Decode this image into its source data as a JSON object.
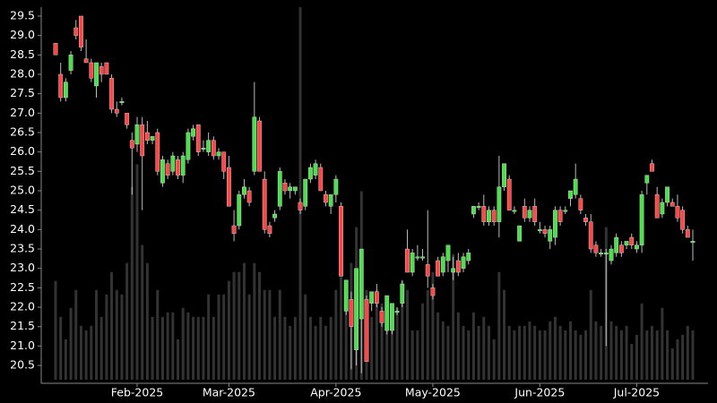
{
  "chart_data": {
    "type": "candlestick",
    "categories": [
      null,
      null,
      null,
      null,
      null,
      null,
      null,
      null,
      null,
      null,
      null,
      null,
      null,
      null,
      null,
      null,
      "Feb-2025",
      null,
      null,
      null,
      null,
      null,
      null,
      null,
      null,
      null,
      null,
      null,
      null,
      null,
      null,
      null,
      null,
      null,
      "Mar-2025",
      null,
      null,
      null,
      null,
      null,
      null,
      null,
      null,
      null,
      null,
      null,
      null,
      null,
      null,
      null,
      null,
      null,
      null,
      null,
      null,
      "Apr-2025",
      null,
      null,
      null,
      null,
      null,
      null,
      null,
      null,
      null,
      null,
      null,
      null,
      null,
      null,
      null,
      null,
      null,
      null,
      "May-2025",
      null,
      null,
      null,
      null,
      null,
      null,
      null,
      null,
      null,
      null,
      null,
      null,
      null,
      null,
      null,
      null,
      null,
      null,
      null,
      null,
      "Jun-2025",
      null,
      null,
      null,
      null,
      null,
      null,
      null,
      null,
      null,
      null,
      null,
      null,
      null,
      null,
      null,
      null,
      null,
      null,
      "Jul-2025",
      null,
      null,
      null,
      null,
      null,
      null,
      null,
      null,
      null,
      null,
      null
    ],
    "open": [
      28.8,
      28.0,
      27.4,
      28.1,
      29.2,
      29.5,
      28.4,
      28.3,
      27.7,
      28.2,
      28.3,
      27.9,
      27.1,
      27.3,
      27.0,
      26.3,
      26.2,
      26.7,
      26.5,
      26.3,
      26.5,
      25.2,
      25.7,
      25.5,
      25.8,
      25.4,
      25.8,
      26.4,
      26.7,
      26.1,
      26.0,
      26.3,
      25.9,
      26.0,
      25.6,
      24.1,
      24.1,
      24.9,
      25.0,
      25.5,
      26.8,
      25.3,
      24.1,
      24.3,
      24.6,
      25.2,
      25.0,
      25.0,
      24.7,
      24.6,
      25.3,
      25.4,
      25.6,
      24.9,
      24.6,
      24.9,
      24.6,
      21.9,
      22.2,
      20.9,
      21.7,
      22.2,
      22.1,
      22.4,
      21.9,
      21.4,
      21.4,
      21.9,
      22.1,
      23.5,
      22.9,
      23.3,
      23.3,
      23.1,
      22.5,
      23.2,
      22.9,
      23.2,
      22.9,
      23.2,
      23.0,
      23.2,
      24.4,
      24.6,
      24.6,
      24.2,
      24.5,
      24.2,
      25.1,
      25.3,
      24.5,
      23.7,
      24.6,
      24.3,
      24.6,
      24.0,
      24.0,
      23.7,
      23.8,
      24.5,
      24.5,
      24.8,
      24.9,
      24.8,
      24.3,
      24.2,
      23.6,
      23.4,
      23.4,
      23.2,
      23.4,
      23.6,
      23.6,
      23.8,
      23.5,
      23.6,
      25.2,
      25.7,
      24.9,
      24.4,
      24.7,
      24.7,
      24.6,
      24.5,
      24.0,
      23.7
    ],
    "high": [
      28.8,
      28.3,
      27.9,
      28.6,
      29.4,
      29.5,
      28.9,
      28.4,
      28.3,
      28.3,
      28.3,
      28.0,
      27.3,
      27.4,
      27.0,
      26.5,
      26.9,
      26.9,
      26.8,
      26.4,
      26.6,
      25.9,
      25.8,
      26.0,
      25.9,
      26.0,
      26.6,
      26.7,
      26.7,
      26.3,
      26.5,
      26.4,
      26.1,
      26.0,
      25.9,
      24.5,
      25.0,
      25.3,
      25.1,
      27.8,
      26.9,
      25.5,
      24.2,
      24.5,
      25.6,
      25.3,
      25.2,
      25.1,
      24.8,
      25.3,
      25.7,
      25.8,
      25.7,
      25.0,
      24.9,
      25.4,
      24.7,
      22.7,
      22.4,
      23.0,
      23.5,
      22.3,
      22.4,
      22.6,
      22.0,
      22.3,
      22.1,
      22.0,
      22.7,
      24.0,
      23.5,
      23.6,
      23.5,
      24.5,
      22.6,
      23.3,
      23.4,
      23.6,
      23.3,
      23.4,
      23.4,
      23.5,
      24.6,
      24.7,
      24.9,
      24.6,
      24.6,
      25.9,
      25.7,
      25.4,
      24.6,
      24.1,
      24.8,
      24.6,
      24.8,
      24.2,
      24.1,
      24.1,
      24.6,
      24.6,
      24.6,
      25.0,
      25.7,
      24.9,
      24.4,
      24.4,
      23.7,
      23.5,
      23.5,
      23.6,
      23.9,
      23.7,
      23.7,
      23.9,
      23.7,
      25.0,
      25.4,
      25.8,
      25.1,
      24.8,
      25.1,
      24.8,
      24.9,
      24.6,
      24.1,
      24.0
    ],
    "low": [
      28.5,
      27.3,
      27.3,
      28.0,
      28.9,
      28.6,
      28.3,
      27.8,
      27.4,
      27.8,
      28.0,
      27.0,
      26.9,
      27.2,
      26.6,
      24.9,
      26.0,
      24.5,
      26.2,
      26.2,
      25.4,
      25.1,
      25.3,
      25.4,
      25.3,
      25.2,
      25.7,
      26.3,
      25.9,
      26.0,
      25.9,
      25.8,
      25.8,
      25.3,
      24.6,
      23.7,
      24.0,
      24.8,
      24.6,
      25.4,
      25.5,
      23.9,
      23.8,
      24.2,
      24.5,
      24.9,
      24.8,
      24.9,
      24.4,
      24.5,
      25.2,
      25.3,
      25.0,
      24.6,
      24.4,
      24.7,
      22.8,
      21.8,
      20.4,
      20.5,
      20.3,
      20.6,
      21.9,
      22.0,
      21.5,
      21.3,
      21.3,
      21.8,
      22.0,
      22.9,
      22.8,
      23.2,
      23.2,
      22.5,
      22.2,
      22.8,
      22.8,
      22.9,
      22.7,
      22.8,
      22.9,
      23.1,
      24.3,
      24.5,
      24.1,
      24.1,
      24.1,
      23.8,
      25.0,
      24.5,
      24.4,
      23.7,
      24.2,
      24.2,
      24.1,
      23.9,
      23.8,
      23.5,
      23.6,
      24.1,
      24.4,
      24.6,
      24.8,
      24.4,
      24.1,
      23.4,
      23.3,
      23.3,
      21.0,
      23.1,
      23.3,
      23.3,
      23.5,
      23.5,
      23.4,
      23.4,
      24.9,
      25.5,
      24.3,
      24.3,
      24.6,
      24.6,
      24.2,
      23.9,
      23.8,
      23.2
    ],
    "close": [
      28.5,
      27.4,
      27.8,
      28.5,
      29.0,
      28.7,
      28.3,
      27.9,
      28.3,
      28.0,
      28.0,
      27.1,
      27.0,
      27.3,
      26.7,
      26.1,
      26.7,
      25.9,
      26.3,
      26.4,
      25.5,
      25.8,
      25.4,
      25.9,
      25.4,
      25.9,
      26.5,
      26.6,
      26.0,
      26.1,
      26.3,
      25.9,
      26.0,
      25.5,
      24.6,
      23.9,
      24.9,
      25.1,
      24.7,
      26.9,
      25.5,
      24.0,
      23.9,
      24.4,
      25.5,
      25.0,
      25.1,
      25.1,
      24.5,
      25.3,
      25.6,
      25.7,
      25.0,
      24.7,
      24.9,
      25.3,
      22.8,
      22.7,
      21.5,
      23.0,
      23.5,
      20.6,
      22.4,
      22.1,
      21.6,
      22.3,
      22.1,
      21.9,
      22.6,
      22.9,
      23.4,
      23.3,
      23.3,
      22.8,
      22.3,
      22.8,
      23.3,
      23.6,
      23.0,
      22.9,
      23.3,
      23.4,
      24.6,
      24.6,
      24.2,
      24.5,
      24.2,
      25.1,
      25.7,
      24.5,
      24.5,
      24.1,
      24.3,
      24.5,
      24.2,
      24.0,
      23.9,
      24.0,
      24.5,
      24.2,
      24.5,
      25.0,
      25.3,
      24.5,
      24.2,
      23.5,
      23.4,
      23.4,
      23.4,
      23.5,
      23.8,
      23.4,
      23.7,
      23.6,
      23.6,
      24.9,
      25.4,
      25.5,
      24.3,
      24.7,
      25.1,
      24.6,
      24.3,
      24.0,
      23.8,
      23.7
    ],
    "volume": [
      110,
      70,
      45,
      80,
      100,
      60,
      55,
      60,
      100,
      70,
      95,
      120,
      100,
      95,
      130,
      215,
      240,
      150,
      130,
      70,
      100,
      70,
      75,
      75,
      45,
      80,
      75,
      70,
      70,
      70,
      95,
      70,
      95,
      95,
      110,
      120,
      120,
      130,
      95,
      130,
      120,
      100,
      100,
      70,
      100,
      70,
      60,
      70,
      415,
      95,
      70,
      60,
      70,
      60,
      70,
      100,
      130,
      80,
      130,
      170,
      210,
      100,
      70,
      100,
      85,
      75,
      70,
      80,
      110,
      100,
      55,
      55,
      85,
      100,
      120,
      75,
      65,
      60,
      140,
      75,
      60,
      55,
      75,
      60,
      70,
      60,
      45,
      120,
      100,
      60,
      55,
      60,
      60,
      65,
      60,
      55,
      55,
      65,
      70,
      60,
      55,
      65,
      55,
      50,
      55,
      100,
      65,
      60,
      170,
      65,
      60,
      55,
      60,
      40,
      50,
      85,
      55,
      60,
      55,
      80,
      55,
      35,
      45,
      50,
      60,
      55
    ],
    "ylim": [
      20.04,
      29.73
    ],
    "yticks": [
      20.5,
      {
        "value": 21,
        "label": "21.0"
      },
      21.5,
      {
        "value": 22,
        "label": "22.0"
      },
      22.5,
      {
        "value": 23,
        "label": "23.0"
      },
      23.5,
      {
        "value": 24,
        "label": "24.0"
      },
      24.5,
      {
        "value": 25,
        "label": "25.0"
      },
      25.5,
      {
        "value": 26,
        "label": "26.0"
      },
      26.5,
      {
        "value": 27,
        "label": "27.0"
      },
      27.5,
      {
        "value": 28,
        "label": "28.0"
      },
      28.5,
      {
        "value": 29,
        "label": "29.0"
      },
      29.5
    ],
    "up_color": "#4be04b",
    "down_color": "#ff4545",
    "volume_color": "#333333"
  }
}
